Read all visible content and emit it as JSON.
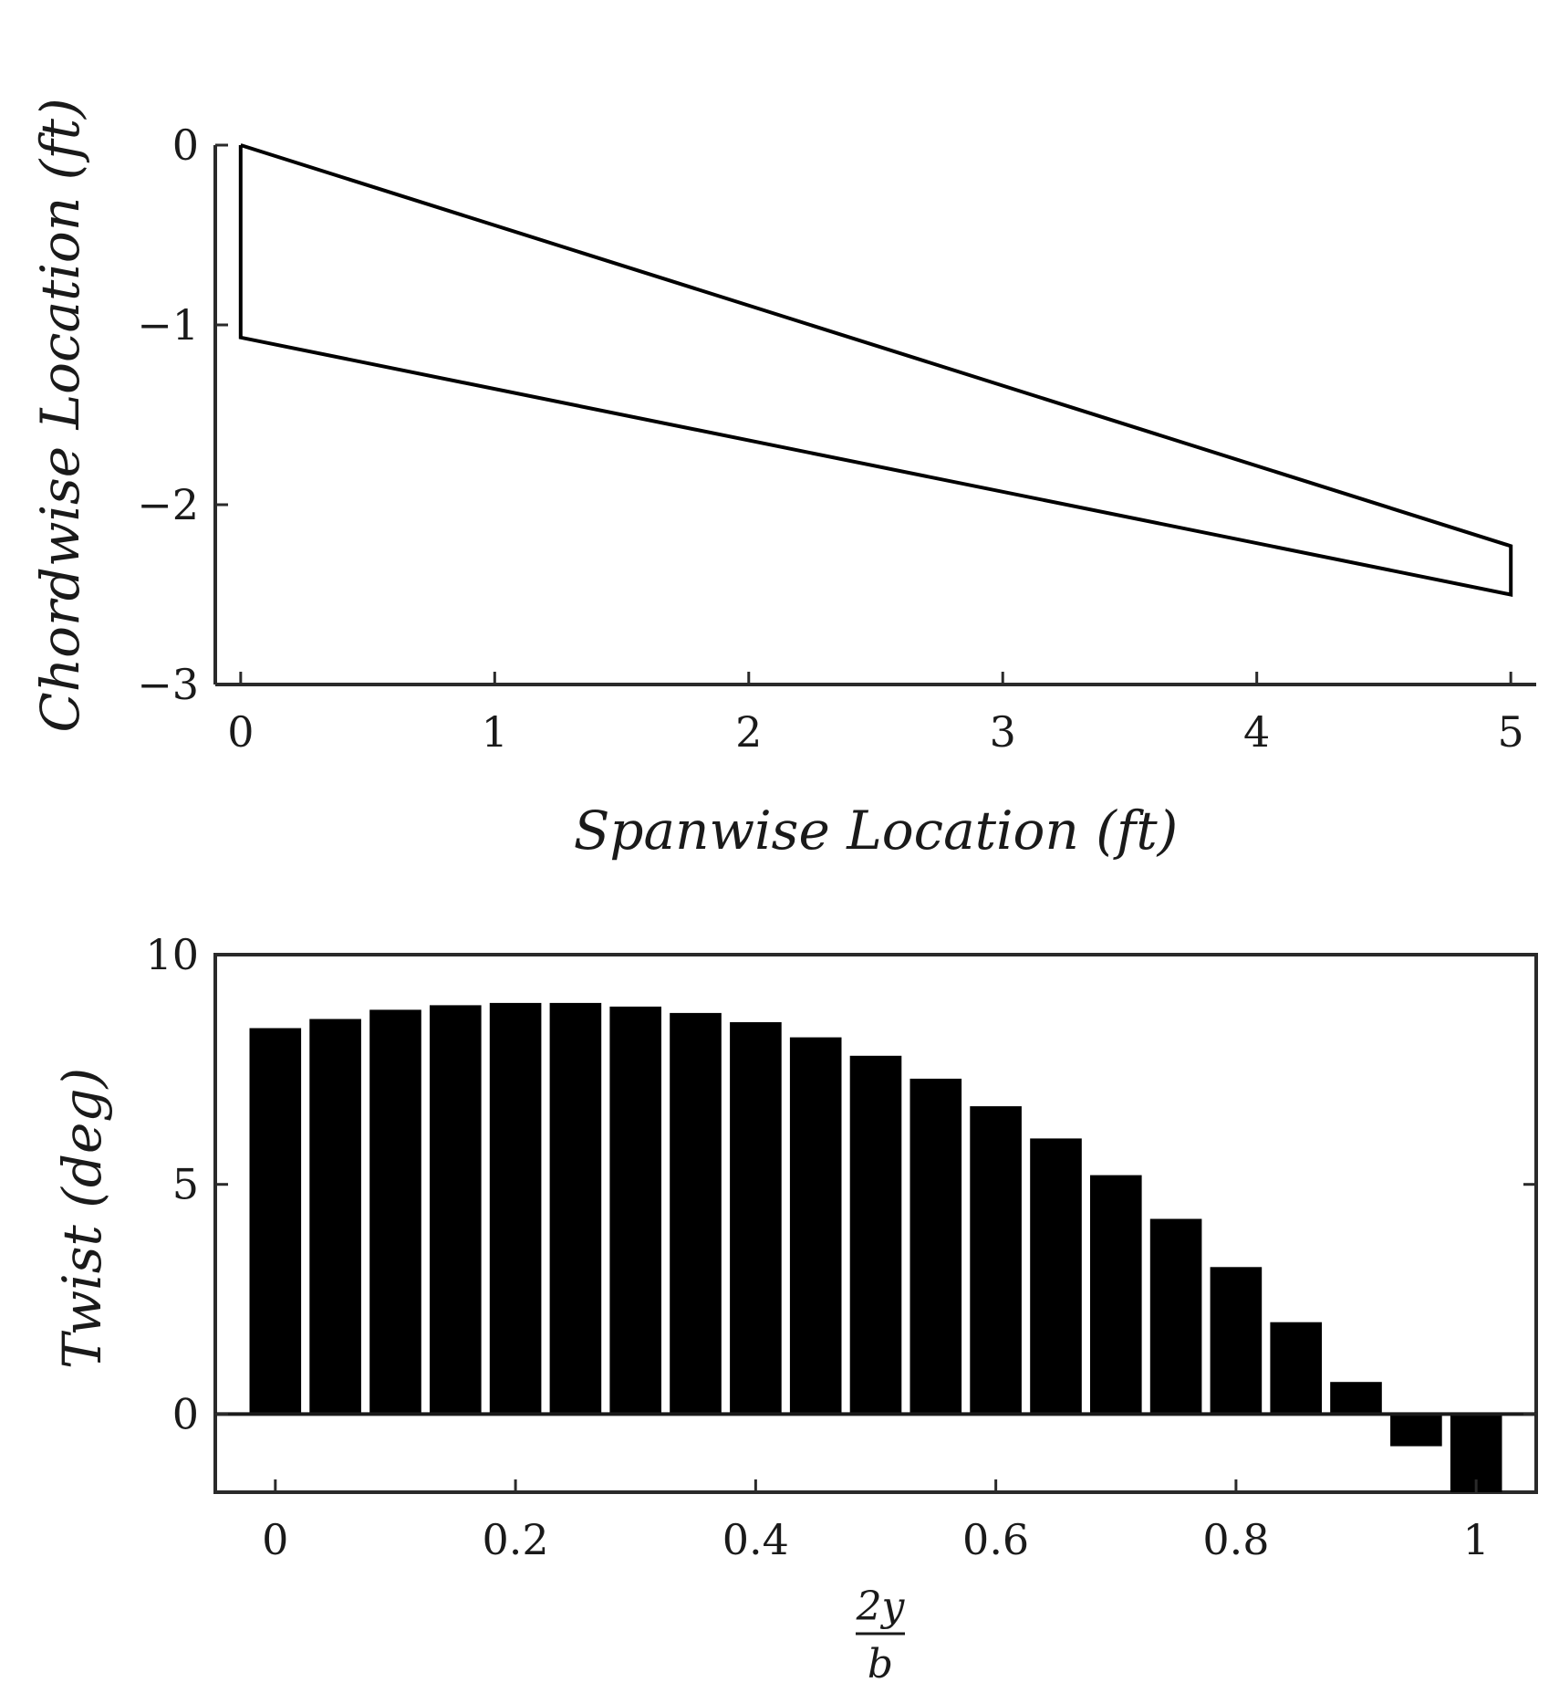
{
  "chart_data": [
    {
      "type": "line",
      "xlabel": "Spanwise Location (ft)",
      "ylabel": "Chordwise Location (ft)",
      "xlim": [
        -0.1,
        5.1
      ],
      "ylim": [
        -3,
        0
      ],
      "xticks": [
        "0",
        "1",
        "2",
        "3",
        "4",
        "5"
      ],
      "yticks": [
        "0",
        "−1",
        "−2",
        "−3"
      ],
      "grid": false,
      "box": false,
      "series": [
        {
          "x": [
            0,
            5,
            5,
            0,
            0
          ],
          "y": [
            0,
            -2.23,
            -2.5,
            -1.07,
            0
          ]
        }
      ]
    },
    {
      "type": "bar",
      "xlabel_numerator": "2y",
      "xlabel_denominator": "b",
      "ylabel": "Twist (deg)",
      "xlim": [
        -0.05,
        1.05
      ],
      "ylim": [
        -1.7,
        10
      ],
      "xticks": [
        "0",
        "0.2",
        "0.4",
        "0.6",
        "0.8",
        "1"
      ],
      "yticks": [
        "0",
        "5",
        "10"
      ],
      "grid": false,
      "box": true,
      "bar_color": "#000000",
      "x": [
        0,
        0.05,
        0.1,
        0.15,
        0.2,
        0.25,
        0.3,
        0.35,
        0.4,
        0.45,
        0.5,
        0.55,
        0.6,
        0.65,
        0.7,
        0.75,
        0.8,
        0.85,
        0.9,
        0.95,
        1.0
      ],
      "values": [
        8.4,
        8.6,
        8.8,
        8.9,
        8.95,
        8.95,
        8.87,
        8.73,
        8.53,
        8.2,
        7.8,
        7.3,
        6.7,
        6.0,
        5.2,
        4.25,
        3.2,
        2.0,
        0.7,
        -0.7,
        -1.7
      ]
    }
  ]
}
